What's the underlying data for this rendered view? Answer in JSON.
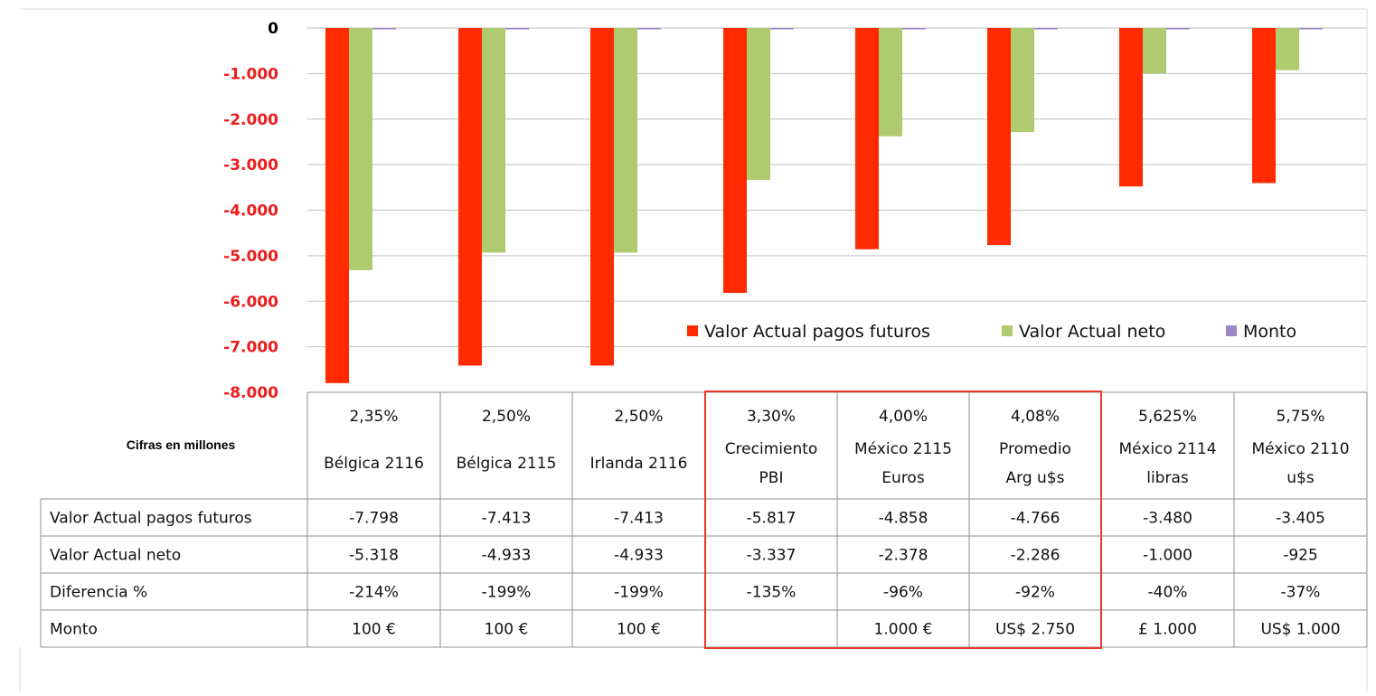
{
  "colors": {
    "series1": "#ff2a00",
    "series2": "#aecb6f",
    "series3": "#9f86c4",
    "zero_tick": "#000000",
    "neg_tick": "#ee1c1c",
    "highlight": "#e8382b",
    "grid": "#bfbfbf",
    "table_border": "#8f8f8f"
  },
  "note": "Cifras en millones",
  "chart_data": {
    "type": "bar",
    "ylim": [
      -8000,
      0
    ],
    "yticks": [
      {
        "value": 0,
        "label": "0"
      },
      {
        "value": -1000,
        "label": "-1.000"
      },
      {
        "value": -2000,
        "label": "-2.000"
      },
      {
        "value": -3000,
        "label": "-3.000"
      },
      {
        "value": -4000,
        "label": "-4.000"
      },
      {
        "value": -5000,
        "label": "-5.000"
      },
      {
        "value": -6000,
        "label": "-6.000"
      },
      {
        "value": -7000,
        "label": "-7.000"
      },
      {
        "value": -8000,
        "label": "-8.000"
      }
    ],
    "categories": [
      {
        "pct": "2,35%",
        "line1": "Bélgica 2116",
        "line2": ""
      },
      {
        "pct": "2,50%",
        "line1": "Bélgica 2115",
        "line2": ""
      },
      {
        "pct": "2,50%",
        "line1": "Irlanda 2116",
        "line2": ""
      },
      {
        "pct": "3,30%",
        "line1": "Crecimiento",
        "line2": "PBI"
      },
      {
        "pct": "4,00%",
        "line1": "México 2115",
        "line2": "Euros"
      },
      {
        "pct": "4,08%",
        "line1": "Promedio",
        "line2": "Arg u$s"
      },
      {
        "pct": "5,625%",
        "line1": "México 2114",
        "line2": "libras"
      },
      {
        "pct": "5,75%",
        "line1": "México 2110",
        "line2": "u$s"
      }
    ],
    "series": [
      {
        "name": "Valor Actual pagos futuros",
        "values": [
          -7798,
          -7413,
          -7413,
          -5817,
          -4858,
          -4766,
          -3480,
          -3405
        ]
      },
      {
        "name": "Valor Actual neto",
        "values": [
          -5318,
          -4933,
          -4933,
          -3337,
          -2378,
          -2286,
          -1000,
          -925
        ]
      },
      {
        "name": "Monto",
        "values": [
          -30,
          -30,
          -30,
          -30,
          -30,
          -30,
          -30,
          -30
        ]
      }
    ],
    "legend_position": "inside-lower-right",
    "highlighted_categories": [
      3,
      4,
      5
    ]
  },
  "table": {
    "rows": [
      {
        "label": "Valor Actual pagos futuros",
        "cells": [
          "-7.798",
          "-7.413",
          "-7.413",
          "-5.817",
          "-4.858",
          "-4.766",
          "-3.480",
          "-3.405"
        ]
      },
      {
        "label": "Valor Actual neto",
        "cells": [
          "-5.318",
          "-4.933",
          "-4.933",
          "-3.337",
          "-2.378",
          "-2.286",
          "-1.000",
          "-925"
        ]
      },
      {
        "label": "Diferencia %",
        "cells": [
          "-214%",
          "-199%",
          "-199%",
          "-135%",
          "-96%",
          "-92%",
          "-40%",
          "-37%"
        ]
      },
      {
        "label": "Monto",
        "cells": [
          "100 €",
          "100 €",
          "100 €",
          "",
          "1.000 €",
          "US$ 2.750",
          "£ 1.000",
          "US$ 1.000"
        ]
      }
    ]
  }
}
